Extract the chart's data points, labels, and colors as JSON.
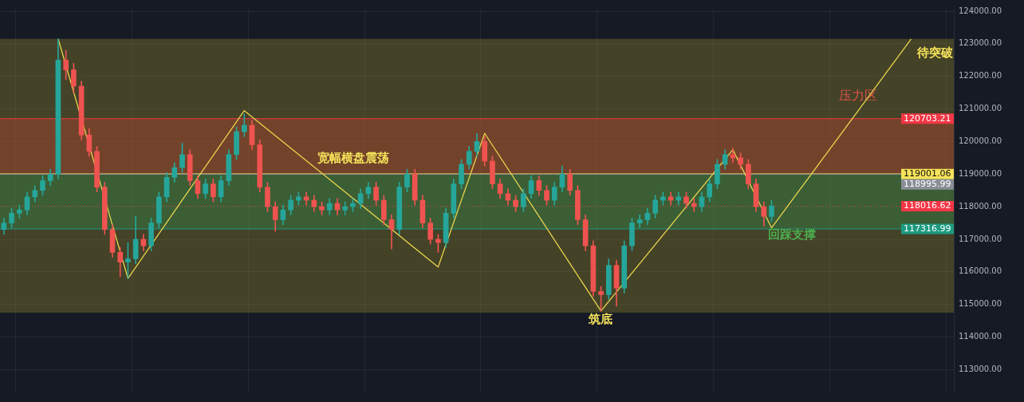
{
  "chart_data": {
    "type": "candlestick",
    "categories": [
      null,
      null,
      null,
      null,
      null,
      null,
      null,
      null,
      null,
      null,
      null,
      null,
      null,
      null,
      null,
      null,
      null,
      null,
      null,
      null,
      null,
      null,
      null,
      null,
      null,
      null,
      null,
      null,
      null,
      null,
      null,
      null,
      null,
      null,
      null,
      null,
      null,
      null,
      null,
      null,
      null,
      null,
      null,
      null,
      null,
      null,
      null,
      null,
      null,
      null,
      null,
      null,
      null,
      null,
      null,
      null,
      null,
      null,
      null,
      null,
      null,
      null,
      null,
      null,
      null,
      null,
      null,
      null,
      null,
      null,
      null,
      null,
      null,
      null,
      null,
      null,
      null,
      null,
      null,
      null,
      null,
      null,
      null,
      null,
      null,
      null,
      null,
      null,
      null,
      null,
      null,
      null,
      null,
      null,
      null,
      null,
      null,
      null,
      null,
      null,
      null,
      null,
      null,
      null,
      null,
      null,
      null,
      null,
      null,
      null,
      null,
      null,
      null,
      null,
      null,
      null,
      null,
      null,
      null,
      null,
      null,
      null,
      null
    ],
    "ohlc": [
      [
        117300,
        117650,
        117150,
        117500
      ],
      [
        117500,
        117950,
        117350,
        117800
      ],
      [
        117800,
        118050,
        117650,
        117900
      ],
      [
        117900,
        118450,
        117750,
        118300
      ],
      [
        118300,
        118650,
        118150,
        118500
      ],
      [
        118500,
        118950,
        118350,
        118800
      ],
      [
        118800,
        119150,
        118650,
        119000
      ],
      [
        119000,
        123150,
        118850,
        122500
      ],
      [
        122500,
        122800,
        121900,
        122200
      ],
      [
        122200,
        122400,
        121500,
        121700
      ],
      [
        121700,
        121850,
        120050,
        120200
      ],
      [
        120200,
        120400,
        119550,
        119700
      ],
      [
        119700,
        119850,
        118450,
        118600
      ],
      [
        118600,
        118750,
        117150,
        117300
      ],
      [
        117300,
        117450,
        116450,
        116600
      ],
      [
        116600,
        116750,
        115850,
        116300
      ],
      [
        116300,
        116900,
        115800,
        116400
      ],
      [
        116400,
        117700,
        116250,
        117000
      ],
      [
        117000,
        117150,
        116650,
        116800
      ],
      [
        116800,
        117650,
        116650,
        117500
      ],
      [
        117500,
        118450,
        117350,
        118300
      ],
      [
        118300,
        119050,
        118150,
        118900
      ],
      [
        118900,
        119350,
        118750,
        119200
      ],
      [
        119200,
        119950,
        119050,
        119600
      ],
      [
        119600,
        119750,
        118650,
        118800
      ],
      [
        118800,
        118950,
        118250,
        118400
      ],
      [
        118400,
        118850,
        118250,
        118700
      ],
      [
        118700,
        118850,
        118150,
        118300
      ],
      [
        118300,
        118950,
        118150,
        118800
      ],
      [
        118800,
        119750,
        118650,
        119600
      ],
      [
        119600,
        120450,
        119450,
        120300
      ],
      [
        120300,
        120850,
        120150,
        120500
      ],
      [
        120500,
        120650,
        119750,
        119900
      ],
      [
        119900,
        120050,
        118450,
        118600
      ],
      [
        118600,
        118750,
        117850,
        118000
      ],
      [
        118000,
        118150,
        117250,
        117600
      ],
      [
        117600,
        118050,
        117450,
        117900
      ],
      [
        117900,
        118350,
        117750,
        118200
      ],
      [
        118200,
        118450,
        118050,
        118300
      ],
      [
        118300,
        118450,
        118050,
        118200
      ],
      [
        118200,
        118350,
        117850,
        118000
      ],
      [
        118000,
        118150,
        117750,
        117900
      ],
      [
        117900,
        118250,
        117750,
        118100
      ],
      [
        118100,
        118250,
        117750,
        117900
      ],
      [
        117900,
        118150,
        117750,
        118000
      ],
      [
        118000,
        118250,
        117850,
        118100
      ],
      [
        118100,
        118550,
        117950,
        118400
      ],
      [
        118400,
        118750,
        118250,
        118600
      ],
      [
        118600,
        118750,
        118050,
        118200
      ],
      [
        118200,
        118350,
        117450,
        117600
      ],
      [
        117600,
        117750,
        116700,
        117300
      ],
      [
        117300,
        118750,
        117150,
        118600
      ],
      [
        118600,
        119150,
        118450,
        119000
      ],
      [
        119000,
        119150,
        118050,
        118200
      ],
      [
        118200,
        118350,
        117350,
        117500
      ],
      [
        117500,
        117650,
        116850,
        117000
      ],
      [
        117000,
        117150,
        116600,
        116900
      ],
      [
        116900,
        117950,
        116750,
        117800
      ],
      [
        117800,
        118850,
        117650,
        118700
      ],
      [
        118700,
        119450,
        118550,
        119300
      ],
      [
        119300,
        119850,
        119150,
        119700
      ],
      [
        119700,
        120250,
        119550,
        120000
      ],
      [
        120000,
        120150,
        119250,
        119400
      ],
      [
        119400,
        119550,
        118550,
        118700
      ],
      [
        118700,
        118850,
        118250,
        118400
      ],
      [
        118400,
        118550,
        118050,
        118200
      ],
      [
        118200,
        118350,
        117850,
        118000
      ],
      [
        118000,
        118550,
        117850,
        118400
      ],
      [
        118400,
        118950,
        118250,
        118800
      ],
      [
        118800,
        118950,
        118350,
        118500
      ],
      [
        118500,
        118650,
        118050,
        118200
      ],
      [
        118200,
        118750,
        118050,
        118600
      ],
      [
        118600,
        119250,
        118450,
        119000
      ],
      [
        119000,
        119150,
        118350,
        118500
      ],
      [
        118500,
        118650,
        117450,
        117600
      ],
      [
        117600,
        117750,
        116650,
        116800
      ],
      [
        116800,
        116950,
        115250,
        115400
      ],
      [
        115400,
        115550,
        114800,
        115300
      ],
      [
        115300,
        116400,
        115150,
        116200
      ],
      [
        116200,
        116350,
        114950,
        115500
      ],
      [
        115500,
        116950,
        115350,
        116800
      ],
      [
        116800,
        117650,
        116650,
        117500
      ],
      [
        117500,
        117750,
        117350,
        117600
      ],
      [
        117600,
        117950,
        117450,
        117800
      ],
      [
        117800,
        118350,
        117650,
        118200
      ],
      [
        118200,
        118450,
        118050,
        118300
      ],
      [
        118300,
        118450,
        118050,
        118200
      ],
      [
        118200,
        118450,
        118050,
        118300
      ],
      [
        118300,
        118450,
        117950,
        118100
      ],
      [
        118100,
        118250,
        117850,
        118000
      ],
      [
        118000,
        118450,
        117850,
        118300
      ],
      [
        118300,
        118850,
        118150,
        118700
      ],
      [
        118700,
        119450,
        118550,
        119300
      ],
      [
        119300,
        119750,
        119150,
        119600
      ],
      [
        119600,
        119800,
        119350,
        119500
      ],
      [
        119500,
        119650,
        119150,
        119300
      ],
      [
        119300,
        119450,
        118550,
        118700
      ],
      [
        118700,
        118850,
        117850,
        118000
      ],
      [
        118000,
        118150,
        117400,
        117700
      ],
      [
        117700,
        118200,
        117550,
        118020
      ],
      null,
      null,
      null,
      null,
      null,
      null,
      null,
      null,
      null,
      null,
      null,
      null,
      null,
      null,
      null,
      null,
      null,
      null,
      null,
      null,
      null,
      null,
      null
    ],
    "series": [
      {
        "type": "line",
        "color": "#e8d44d",
        "values": [
          null,
          null,
          null,
          null,
          null,
          null,
          null,
          123150,
          null,
          null,
          null,
          null,
          null,
          null,
          null,
          null,
          115800,
          null,
          null,
          null,
          null,
          null,
          null,
          null,
          null,
          null,
          null,
          null,
          null,
          null,
          null,
          120950,
          null,
          null,
          null,
          null,
          null,
          null,
          null,
          null,
          null,
          null,
          null,
          null,
          null,
          null,
          null,
          null,
          null,
          null,
          null,
          null,
          null,
          null,
          null,
          null,
          116150,
          null,
          null,
          null,
          null,
          null,
          120250,
          null,
          null,
          null,
          null,
          null,
          null,
          null,
          null,
          null,
          null,
          null,
          null,
          null,
          null,
          114800,
          null,
          null,
          null,
          null,
          null,
          null,
          null,
          null,
          null,
          null,
          null,
          null,
          null,
          null,
          null,
          null,
          119750,
          null,
          null,
          null,
          null,
          117350,
          null,
          null,
          null,
          null,
          null,
          null,
          null,
          null,
          null,
          null,
          null,
          null,
          null,
          null,
          null,
          null,
          null,
          123150,
          null,
          null,
          null,
          null,
          null
        ]
      }
    ],
    "marker": "none",
    "ylim": [
      112300,
      124050
    ],
    "yticks": [
      {
        "value": 113000,
        "label": "113000.00"
      },
      {
        "value": 114000,
        "label": "114000.00"
      },
      {
        "value": 115000,
        "label": "115000.00"
      },
      {
        "value": 116000,
        "label": "116000.00"
      },
      {
        "value": 117000,
        "label": "117000.00"
      },
      {
        "value": 118000,
        "label": "118000.00"
      },
      {
        "value": 119000,
        "label": "119000.00"
      },
      {
        "value": 120000,
        "label": "120000.00"
      },
      {
        "value": 121000,
        "label": "121000.00"
      },
      {
        "value": 122000,
        "label": "122000.00"
      },
      {
        "value": 123000,
        "label": "123000.00"
      },
      {
        "value": 124000,
        "label": "124000.00"
      }
    ],
    "bands": [
      {
        "axis": "y",
        "from": 114750,
        "to": 123150,
        "color": "#8a7f2a"
      },
      {
        "axis": "y",
        "from": 119001.06,
        "to": 120703.21,
        "color": "#b8452f",
        "label": "压力区"
      },
      {
        "axis": "y",
        "from": 117316.99,
        "to": 119001.06,
        "color": "#2f8a4a"
      }
    ],
    "ref_lines": [
      {
        "axis": "y",
        "value": 120703.21,
        "label": "120703.21",
        "color": "#f23645"
      },
      {
        "axis": "y",
        "value": 119001.06,
        "label": "119001.06",
        "color": "#f5e35a",
        "line_style": "solid"
      },
      {
        "axis": "y",
        "value": 118995.99,
        "label": "118995.99",
        "color": "#8a8d96"
      },
      {
        "axis": "y",
        "value": 118016.62,
        "label": "118016.62",
        "color": "#f23645",
        "line_style": "dotted"
      },
      {
        "axis": "y",
        "value": 117316.99,
        "label": "117316.99",
        "color": "#1e9a80"
      }
    ],
    "annotations": [
      "待突破",
      "宽幅横盘震荡",
      "筑底",
      "回踩支撑"
    ],
    "grid": true,
    "tick_labels": "y",
    "legend": false
  }
}
